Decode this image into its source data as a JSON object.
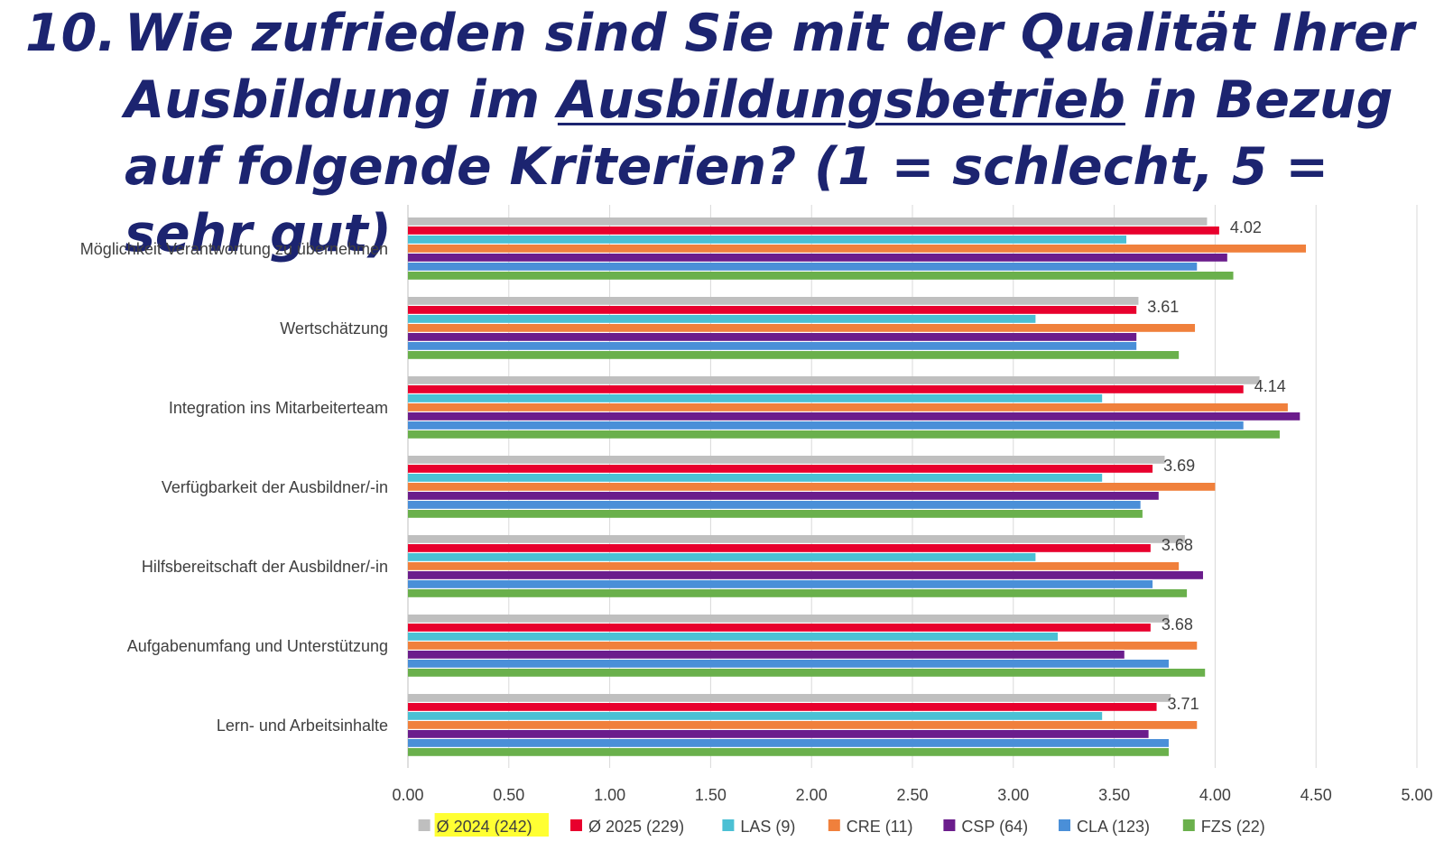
{
  "title": {
    "number": "10.",
    "part1": "Wie zufrieden sind Sie mit der Qualität Ihrer Ausbildung im",
    "underlined": "Ausbildungsbetrieb",
    "part2": "in Bezug auf folgende Kriterien? (1 = schlecht, 5 = sehr gut)"
  },
  "chart_data": {
    "type": "bar",
    "orientation": "horizontal",
    "xlim": [
      0,
      5
    ],
    "xticks": [
      "0.00",
      "0.50",
      "1.00",
      "1.50",
      "2.00",
      "2.50",
      "3.00",
      "3.50",
      "4.00",
      "4.50",
      "5.00"
    ],
    "grid": "vertical",
    "legend_position": "bottom",
    "categories": [
      "Möglichkeit Verantwortung zu übernehmen",
      "Wertschätzung",
      "Integration ins Mitarbeiterteam",
      "Verfügbarkeit der Ausbildner/-in",
      "Hilfsbereitschaft der Ausbildner/-in",
      "Aufgabenumfang und Unterstützung",
      "Lern- und Arbeitsinhalte"
    ],
    "series": [
      {
        "name": "Ø 2024 (242)",
        "color": "#bfbfbf",
        "highlight": "#ffff33",
        "values": [
          3.96,
          3.62,
          4.22,
          3.75,
          3.85,
          3.77,
          3.78
        ]
      },
      {
        "name": "Ø 2025 (229)",
        "color": "#e8002d",
        "values": [
          4.02,
          3.61,
          4.14,
          3.69,
          3.68,
          3.68,
          3.71
        ],
        "data_labels": [
          "4.02",
          "3.61",
          "4.14",
          "3.69",
          "3.68",
          "3.68",
          "3.71"
        ]
      },
      {
        "name": "LAS (9)",
        "color": "#4bc0d4",
        "values": [
          3.56,
          3.11,
          3.44,
          3.44,
          3.11,
          3.22,
          3.44
        ]
      },
      {
        "name": "CRE (11)",
        "color": "#f0803c",
        "values": [
          4.45,
          3.9,
          4.36,
          4.0,
          3.82,
          3.91,
          3.91
        ]
      },
      {
        "name": "CSP (64)",
        "color": "#6b1d8c",
        "values": [
          4.06,
          3.61,
          4.42,
          3.72,
          3.94,
          3.55,
          3.67
        ]
      },
      {
        "name": "CLA (123)",
        "color": "#4a8fd8",
        "values": [
          3.91,
          3.61,
          4.14,
          3.63,
          3.69,
          3.77,
          3.77
        ]
      },
      {
        "name": "FZS (22)",
        "color": "#6ab04c",
        "values": [
          4.09,
          3.82,
          4.32,
          3.64,
          3.86,
          3.95,
          3.77
        ]
      }
    ]
  }
}
